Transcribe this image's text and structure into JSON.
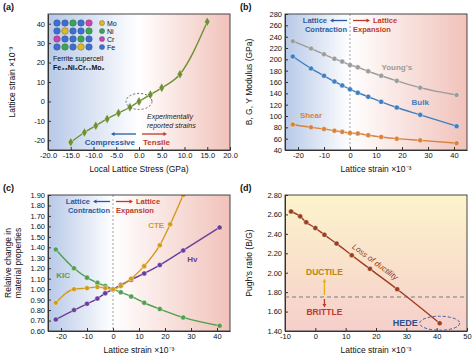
{
  "chart_data": [
    {
      "title": "(a)",
      "type": "line",
      "x_label": "Local Lattice Stress (GPa)",
      "y_label": "Lattice strain ×10⁻³",
      "x": [
        -15,
        -12,
        -9.5,
        -7,
        -4.5,
        -2,
        0,
        2.5,
        5,
        9,
        15
      ],
      "values": [
        -21,
        -16,
        -12.5,
        -9,
        -6,
        -3,
        0,
        3.5,
        7,
        14,
        41
      ],
      "color": "#6f8f33",
      "marker": "diamond",
      "xlim": [
        -20,
        20
      ],
      "xticks": [
        {
          "value": -20,
          "label": "-20.0"
        },
        {
          "value": -15,
          "label": "-15.0"
        },
        {
          "value": -10,
          "label": "-10.0"
        },
        {
          "value": -5,
          "label": "-5.0"
        },
        {
          "value": 0,
          "label": "0.0"
        },
        {
          "value": 5,
          "label": "5.0"
        },
        {
          "value": 10,
          "label": "10.0"
        },
        {
          "value": 15,
          "label": "15.0"
        },
        {
          "value": 20,
          "label": "20.0"
        }
      ],
      "ylim": [
        -25,
        45
      ],
      "yticks": [
        -20,
        -10,
        0,
        10,
        20,
        30,
        40
      ],
      "annotations": [
        "Experimentally reported strains",
        "Compressive",
        "Tensile"
      ],
      "inset": {
        "title": "Ferrite supercell",
        "formula": "Fe₃₃Ni₆Cr₁₁Mo₂",
        "elements": [
          "Mo",
          "Ni",
          "Cr",
          "Fe"
        ],
        "colors": [
          "#e0b81f",
          "#3aa655",
          "#d23fb0",
          "#3b6fd1"
        ]
      }
    },
    {
      "title": "(b)",
      "type": "line",
      "x_label": "Lattice strain ×10⁻³",
      "y_label": "B, G, Y Modulus (GPa)",
      "x": [
        -22,
        -15,
        -10,
        -6,
        -3,
        0,
        3,
        7,
        12,
        18,
        27,
        41
      ],
      "series": [
        {
          "name": "Young's",
          "color": "#9b9b9b",
          "marker": "circle",
          "values": [
            232,
            219,
            209,
            201,
            196,
            190,
            186,
            179,
            171,
            162,
            150,
            137
          ]
        },
        {
          "name": "Bulk",
          "color": "#3f7fc0",
          "marker": "circle",
          "values": [
            205,
            184,
            171,
            161,
            154,
            147,
            141,
            134,
            125,
            115,
            102,
            82
          ]
        },
        {
          "name": "Shear",
          "color": "#d9823a",
          "marker": "circle",
          "values": [
            85,
            80,
            77,
            74,
            72,
            70,
            69,
            66,
            63,
            60,
            57,
            52
          ]
        }
      ],
      "xlim": [
        -25,
        45
      ],
      "xticks": [
        -20,
        -10,
        0,
        10,
        20,
        30,
        40
      ],
      "ylim": [
        40,
        280
      ],
      "yticks": [
        40,
        60,
        80,
        100,
        120,
        140,
        160,
        180,
        200,
        220,
        240,
        260,
        280
      ],
      "annotations": [
        "Lattice Contraction",
        "Lattice Expansion"
      ]
    },
    {
      "title": "(c)",
      "type": "line",
      "x_label": "Lattice strain ×10⁻³",
      "y_label": "Relative change in material properties",
      "x": [
        -22,
        -15,
        -10,
        -6,
        -3,
        0,
        3,
        7,
        12,
        18,
        27,
        41
      ],
      "series": [
        {
          "name": "KIC",
          "color": "#4f9f4f",
          "marker": "circle",
          "values": [
            1.38,
            1.2,
            1.11,
            1.06,
            1.03,
            1.0,
            0.97,
            0.93,
            0.87,
            0.81,
            0.73,
            0.65
          ]
        },
        {
          "name": "Hv",
          "color": "#6a3d9a",
          "marker": "circle",
          "values": [
            0.71,
            0.8,
            0.86,
            0.91,
            0.96,
            1.0,
            1.04,
            1.09,
            1.15,
            1.23,
            1.37,
            1.59
          ]
        },
        {
          "name": "CTE",
          "color": "#d49a1a",
          "marker": "circle",
          "x": [
            -22,
            -15,
            -10,
            -6,
            -3,
            0,
            3,
            7,
            12,
            18,
            22,
            27
          ],
          "values": [
            0.87,
            1.0,
            1.01,
            1.02,
            1.01,
            1.0,
            1.03,
            1.1,
            1.22,
            1.42,
            1.62,
            1.9
          ]
        }
      ],
      "xlim": [
        -25,
        45
      ],
      "xticks": [
        -20,
        -10,
        0,
        10,
        20,
        30,
        40
      ],
      "ylim": [
        0.6,
        1.9
      ],
      "yticks": [
        {
          "value": 0.6,
          "label": "0.60"
        },
        {
          "value": 0.7,
          "label": "0.70"
        },
        {
          "value": 0.8,
          "label": "0.80"
        },
        {
          "value": 0.9,
          "label": "0.90"
        },
        {
          "value": 1,
          "label": "1.00"
        },
        {
          "value": 1.1,
          "label": "1.10"
        },
        {
          "value": 1.2,
          "label": "1.20"
        },
        {
          "value": 1.3,
          "label": "1.30"
        },
        {
          "value": 1.4,
          "label": "1.40"
        },
        {
          "value": 1.5,
          "label": "1.50"
        },
        {
          "value": 1.6,
          "label": "1.60"
        },
        {
          "value": 1.7,
          "label": "1.70"
        },
        {
          "value": 1.8,
          "label": "1.80"
        },
        {
          "value": 1.9,
          "label": "1.90"
        }
      ],
      "annotations": [
        "Lattice Contraction",
        "Lattice Expansion"
      ]
    },
    {
      "title": "(d)",
      "type": "line",
      "x_label": "Lattice strain ×10⁻³",
      "y_label": "Pugh's ratio (B/G)",
      "x": [
        -8,
        -5,
        -3,
        0,
        3,
        7,
        12,
        18,
        27,
        41
      ],
      "values": [
        2.63,
        2.58,
        2.52,
        2.46,
        2.39,
        2.3,
        2.18,
        2.04,
        1.83,
        1.48
      ],
      "color": "#9c3d1f",
      "marker": "circle",
      "xlim": [
        -10,
        50
      ],
      "xticks": [
        -10,
        0,
        10,
        20,
        30,
        40,
        50
      ],
      "ylim": [
        1.4,
        2.8
      ],
      "yticks": [
        {
          "value": 1.4,
          "label": "1.40"
        },
        {
          "value": 1.6,
          "label": "1.60"
        },
        {
          "value": 1.8,
          "label": "1.80"
        },
        {
          "value": 2,
          "label": "2.00"
        },
        {
          "value": 2.2,
          "label": "2.20"
        },
        {
          "value": 2.4,
          "label": "2.40"
        },
        {
          "value": 2.6,
          "label": "2.60"
        },
        {
          "value": 2.8,
          "label": "2.80"
        }
      ],
      "threshold": 1.75,
      "annotations": [
        "Loss of ductility",
        "DUCTILE",
        "BRITTLE",
        "HEDE"
      ]
    }
  ]
}
